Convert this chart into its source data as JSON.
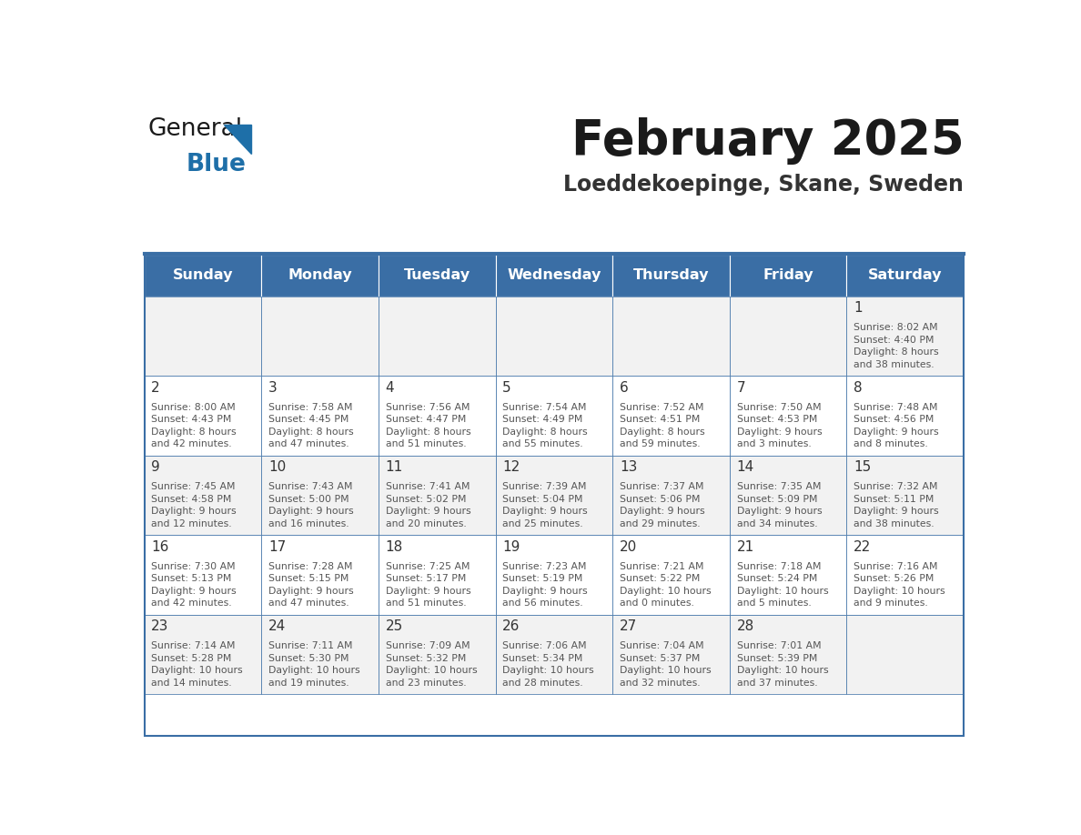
{
  "title": "February 2025",
  "subtitle": "Loeddekoepinge, Skane, Sweden",
  "days_of_week": [
    "Sunday",
    "Monday",
    "Tuesday",
    "Wednesday",
    "Thursday",
    "Friday",
    "Saturday"
  ],
  "header_bg": "#3a6ea5",
  "header_text_color": "#ffffff",
  "cell_bg_even": "#f2f2f2",
  "cell_bg_odd": "#ffffff",
  "border_color": "#3a6ea5",
  "text_color": "#555555",
  "day_number_color": "#333333",
  "title_color": "#1a1a1a",
  "subtitle_color": "#333333",
  "logo_general_color": "#1a1a1a",
  "logo_blue_color": "#1e6fa8",
  "logo_triangle_color": "#1e6fa8",
  "weeks": [
    [
      {
        "day": 0,
        "info": ""
      },
      {
        "day": 0,
        "info": ""
      },
      {
        "day": 0,
        "info": ""
      },
      {
        "day": 0,
        "info": ""
      },
      {
        "day": 0,
        "info": ""
      },
      {
        "day": 0,
        "info": ""
      },
      {
        "day": 1,
        "info": "Sunrise: 8:02 AM\nSunset: 4:40 PM\nDaylight: 8 hours\nand 38 minutes."
      }
    ],
    [
      {
        "day": 2,
        "info": "Sunrise: 8:00 AM\nSunset: 4:43 PM\nDaylight: 8 hours\nand 42 minutes."
      },
      {
        "day": 3,
        "info": "Sunrise: 7:58 AM\nSunset: 4:45 PM\nDaylight: 8 hours\nand 47 minutes."
      },
      {
        "day": 4,
        "info": "Sunrise: 7:56 AM\nSunset: 4:47 PM\nDaylight: 8 hours\nand 51 minutes."
      },
      {
        "day": 5,
        "info": "Sunrise: 7:54 AM\nSunset: 4:49 PM\nDaylight: 8 hours\nand 55 minutes."
      },
      {
        "day": 6,
        "info": "Sunrise: 7:52 AM\nSunset: 4:51 PM\nDaylight: 8 hours\nand 59 minutes."
      },
      {
        "day": 7,
        "info": "Sunrise: 7:50 AM\nSunset: 4:53 PM\nDaylight: 9 hours\nand 3 minutes."
      },
      {
        "day": 8,
        "info": "Sunrise: 7:48 AM\nSunset: 4:56 PM\nDaylight: 9 hours\nand 8 minutes."
      }
    ],
    [
      {
        "day": 9,
        "info": "Sunrise: 7:45 AM\nSunset: 4:58 PM\nDaylight: 9 hours\nand 12 minutes."
      },
      {
        "day": 10,
        "info": "Sunrise: 7:43 AM\nSunset: 5:00 PM\nDaylight: 9 hours\nand 16 minutes."
      },
      {
        "day": 11,
        "info": "Sunrise: 7:41 AM\nSunset: 5:02 PM\nDaylight: 9 hours\nand 20 minutes."
      },
      {
        "day": 12,
        "info": "Sunrise: 7:39 AM\nSunset: 5:04 PM\nDaylight: 9 hours\nand 25 minutes."
      },
      {
        "day": 13,
        "info": "Sunrise: 7:37 AM\nSunset: 5:06 PM\nDaylight: 9 hours\nand 29 minutes."
      },
      {
        "day": 14,
        "info": "Sunrise: 7:35 AM\nSunset: 5:09 PM\nDaylight: 9 hours\nand 34 minutes."
      },
      {
        "day": 15,
        "info": "Sunrise: 7:32 AM\nSunset: 5:11 PM\nDaylight: 9 hours\nand 38 minutes."
      }
    ],
    [
      {
        "day": 16,
        "info": "Sunrise: 7:30 AM\nSunset: 5:13 PM\nDaylight: 9 hours\nand 42 minutes."
      },
      {
        "day": 17,
        "info": "Sunrise: 7:28 AM\nSunset: 5:15 PM\nDaylight: 9 hours\nand 47 minutes."
      },
      {
        "day": 18,
        "info": "Sunrise: 7:25 AM\nSunset: 5:17 PM\nDaylight: 9 hours\nand 51 minutes."
      },
      {
        "day": 19,
        "info": "Sunrise: 7:23 AM\nSunset: 5:19 PM\nDaylight: 9 hours\nand 56 minutes."
      },
      {
        "day": 20,
        "info": "Sunrise: 7:21 AM\nSunset: 5:22 PM\nDaylight: 10 hours\nand 0 minutes."
      },
      {
        "day": 21,
        "info": "Sunrise: 7:18 AM\nSunset: 5:24 PM\nDaylight: 10 hours\nand 5 minutes."
      },
      {
        "day": 22,
        "info": "Sunrise: 7:16 AM\nSunset: 5:26 PM\nDaylight: 10 hours\nand 9 minutes."
      }
    ],
    [
      {
        "day": 23,
        "info": "Sunrise: 7:14 AM\nSunset: 5:28 PM\nDaylight: 10 hours\nand 14 minutes."
      },
      {
        "day": 24,
        "info": "Sunrise: 7:11 AM\nSunset: 5:30 PM\nDaylight: 10 hours\nand 19 minutes."
      },
      {
        "day": 25,
        "info": "Sunrise: 7:09 AM\nSunset: 5:32 PM\nDaylight: 10 hours\nand 23 minutes."
      },
      {
        "day": 26,
        "info": "Sunrise: 7:06 AM\nSunset: 5:34 PM\nDaylight: 10 hours\nand 28 minutes."
      },
      {
        "day": 27,
        "info": "Sunrise: 7:04 AM\nSunset: 5:37 PM\nDaylight: 10 hours\nand 32 minutes."
      },
      {
        "day": 28,
        "info": "Sunrise: 7:01 AM\nSunset: 5:39 PM\nDaylight: 10 hours\nand 37 minutes."
      },
      {
        "day": 0,
        "info": ""
      }
    ]
  ]
}
